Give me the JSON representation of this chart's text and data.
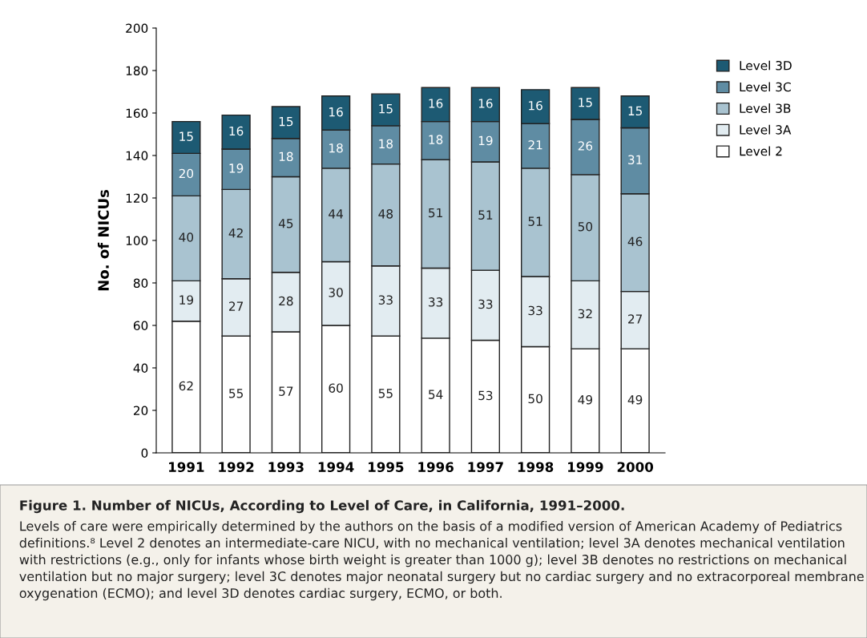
{
  "chart_data": {
    "type": "bar",
    "stacked": true,
    "title": "Figure 1. Number of NICUs, According to Level of Care, in California, 1991–2000.",
    "ylabel": "No. of NICUs",
    "categories": [
      "1991",
      "1992",
      "1993",
      "1994",
      "1995",
      "1996",
      "1997",
      "1998",
      "1999",
      "2000"
    ],
    "series": [
      {
        "name": "Level 2",
        "color": "#ffffff",
        "values": [
          62,
          55,
          57,
          60,
          55,
          54,
          53,
          50,
          49,
          49
        ]
      },
      {
        "name": "Level 3A",
        "color": "#e2ecf1",
        "values": [
          19,
          27,
          28,
          30,
          33,
          33,
          33,
          33,
          32,
          27
        ]
      },
      {
        "name": "Level 3B",
        "color": "#a9c3d0",
        "values": [
          40,
          42,
          45,
          44,
          48,
          51,
          51,
          51,
          50,
          46
        ]
      },
      {
        "name": "Level 3C",
        "color": "#5f8ca3",
        "values": [
          20,
          19,
          18,
          18,
          18,
          18,
          19,
          21,
          26,
          31
        ]
      },
      {
        "name": "Level 3D",
        "color": "#1d5a73",
        "values": [
          15,
          16,
          15,
          16,
          15,
          16,
          16,
          16,
          15,
          15
        ]
      }
    ],
    "ylim": [
      0,
      200
    ],
    "yticks": [
      0,
      20,
      40,
      60,
      80,
      100,
      120,
      140,
      160,
      180,
      200
    ],
    "data_labels": true,
    "legend": "top right",
    "grid": false,
    "annotations": [
      "Levels of care were empirically determined by the authors on the basis of a modified version of American Academy of Pediatrics definitions.⁸ Level 2 denotes an intermediate-care NICU, with no mechanical ventilation; level 3A denotes mechanical ventilation with restrictions (e.g., only for infants whose birth weight is greater than 1000 g); level 3B denotes no restrictions on mechanical ventilation but no major surgery; level 3C denotes major neonatal surgery but no cardiac surgery and no extracorporeal membrane oxygenation (ECMO); and level 3D denotes cardiac surgery, ECMO, or both."
    ]
  }
}
